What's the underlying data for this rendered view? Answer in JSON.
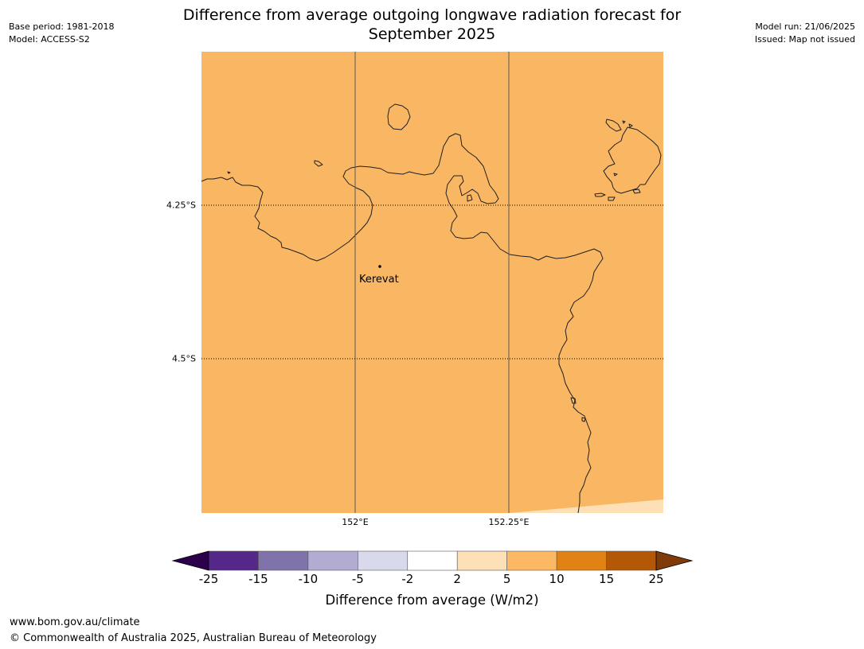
{
  "header": {
    "title_line1": "Difference from average outgoing longwave radiation forecast for",
    "title_line2": "September 2025",
    "base_period": "Base period: 1981-2018",
    "model": "Model: ACCESS-S2",
    "model_run": "Model run: 21/06/2025",
    "issued": "Issued: Map not issued"
  },
  "map": {
    "fill_color": "#fab763",
    "corner_fill_color": "#fee0b6",
    "lat_labels": [
      "4.25°S",
      "4.5°S"
    ],
    "lon_labels": [
      "152°E",
      "152.25°E"
    ],
    "place_label": "Kerevat"
  },
  "colorbar": {
    "bins": [
      {
        "from": -25,
        "to": -15,
        "color": "#542788"
      },
      {
        "from": -15,
        "to": -10,
        "color": "#8073ac"
      },
      {
        "from": -10,
        "to": -5,
        "color": "#b2abd2"
      },
      {
        "from": -5,
        "to": -2,
        "color": "#d8daeb"
      },
      {
        "from": -2,
        "to": 2,
        "color": "#ffffff"
      },
      {
        "from": 2,
        "to": 5,
        "color": "#fee0b6"
      },
      {
        "from": 5,
        "to": 10,
        "color": "#fdb863"
      },
      {
        "from": 10,
        "to": 15,
        "color": "#e08214"
      },
      {
        "from": 15,
        "to": 25,
        "color": "#b35806"
      }
    ],
    "under_color": "#2d004b",
    "over_color": "#7f3b08",
    "ticks": [
      "-25",
      "-15",
      "-10",
      "-5",
      "-2",
      "2",
      "5",
      "10",
      "15",
      "25"
    ],
    "label": "Difference from average (W/m2)"
  },
  "footer": {
    "url": "www.bom.gov.au/climate",
    "copyright": "© Commonwealth of Australia 2025, Australian Bureau of Meteorology"
  }
}
